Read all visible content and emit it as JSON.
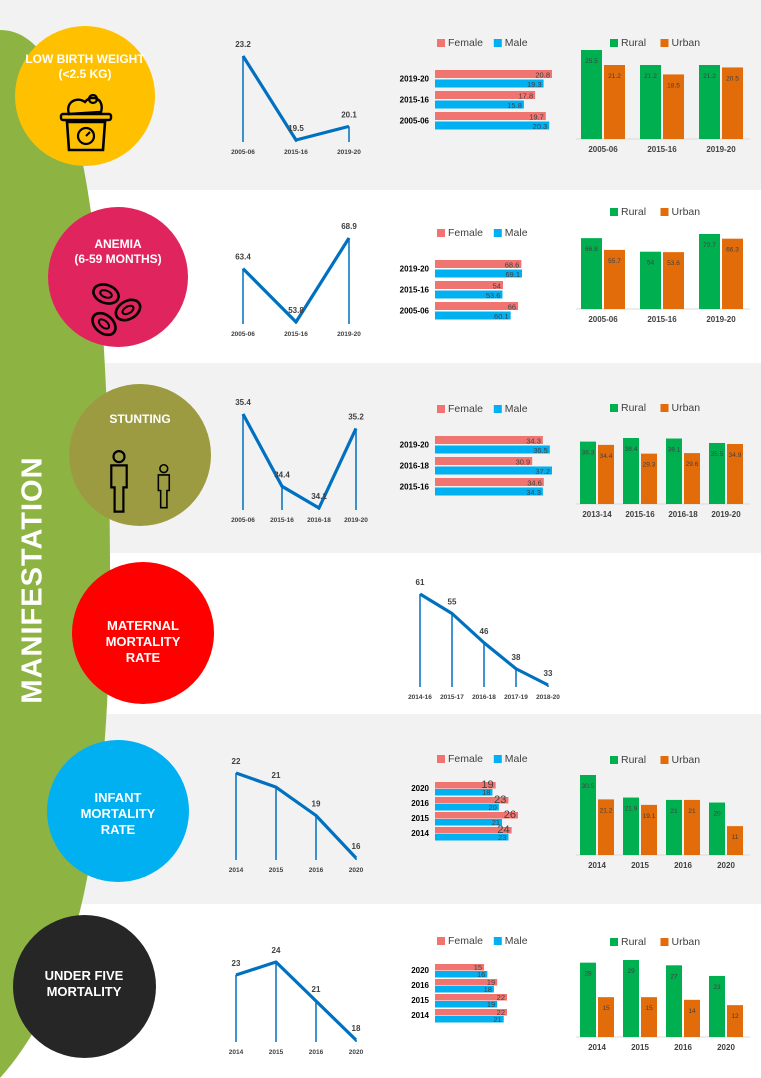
{
  "sidebar": {
    "title": "MANIFESTATION"
  },
  "rows": [
    {
      "id": "lbw",
      "label_lines": [
        "LOW BIRTH WEIGHT",
        "(<2.5 KG)"
      ],
      "circle_color": "#ffc000",
      "bg": "#f2f2f2"
    },
    {
      "id": "anemia",
      "label_lines": [
        "ANEMIA",
        "(6-59 MONTHS)"
      ],
      "circle_color": "#e0245e",
      "bg": "#ffffff"
    },
    {
      "id": "stunting",
      "label_lines": [
        "STUNTING"
      ],
      "circle_color": "#9d9b42",
      "bg": "#f2f2f2"
    },
    {
      "id": "mmr",
      "label_lines": [
        "MATERNAL",
        "MORTALITY",
        "RATE"
      ],
      "circle_color": "#ff0000",
      "bg": "#ffffff"
    },
    {
      "id": "imr",
      "label_lines": [
        "INFANT",
        "MORTALITY",
        "RATE"
      ],
      "circle_color": "#00b0f0",
      "bg": "#f2f2f2"
    },
    {
      "id": "u5",
      "label_lines": [
        "UNDER FIVE",
        "MORTALITY"
      ],
      "circle_color": "#262626",
      "bg": "#ffffff"
    }
  ],
  "colors": {
    "line": "#0070c0",
    "female": "#f07470",
    "male": "#00b0f0",
    "rural": "#00b050",
    "urban": "#e26b0a",
    "leaf": "#8db443"
  },
  "chart_data": [
    {
      "type": "line",
      "indicator": "lbw",
      "categories": [
        "2005-06",
        "2015-16",
        "2019-20"
      ],
      "values": [
        23.2,
        19.5,
        20.1
      ]
    },
    {
      "type": "bar",
      "orientation": "horizontal",
      "indicator": "lbw",
      "categories": [
        "2019-20",
        "2015-16",
        "2005-06"
      ],
      "series": [
        {
          "name": "Female",
          "values": [
            20.8,
            17.8,
            19.7
          ]
        },
        {
          "name": "Male",
          "values": [
            19.3,
            15.8,
            20.3
          ]
        }
      ]
    },
    {
      "type": "bar",
      "orientation": "vertical",
      "indicator": "lbw",
      "categories": [
        "2005-06",
        "2015-16",
        "2019-20"
      ],
      "series": [
        {
          "name": "Rural",
          "values": [
            25.5,
            21.2,
            21.2
          ]
        },
        {
          "name": "Urban",
          "values": [
            21.2,
            18.5,
            20.5
          ]
        }
      ]
    },
    {
      "type": "line",
      "indicator": "anemia",
      "categories": [
        "2005-06",
        "2015-16",
        "2019-20"
      ],
      "values": [
        63.4,
        53.8,
        68.9
      ]
    },
    {
      "type": "bar",
      "orientation": "horizontal",
      "indicator": "anemia",
      "categories": [
        "2019-20",
        "2015-16",
        "2005-06"
      ],
      "series": [
        {
          "name": "Female",
          "values": [
            68.6,
            54,
            66
          ]
        },
        {
          "name": "Male",
          "values": [
            69.1,
            53.6,
            60.1
          ]
        }
      ]
    },
    {
      "type": "bar",
      "orientation": "vertical",
      "indicator": "anemia",
      "categories": [
        "2005-06",
        "2015-16",
        "2019-20"
      ],
      "series": [
        {
          "name": "Rural",
          "values": [
            66.8,
            54,
            70.7
          ]
        },
        {
          "name": "Urban",
          "values": [
            55.7,
            53.6,
            66.3
          ]
        }
      ]
    },
    {
      "type": "line",
      "indicator": "stunting",
      "categories": [
        "2005-06",
        "2015-16",
        "2016-18",
        "2019-20"
      ],
      "values": [
        35.4,
        34.4,
        34.1,
        35.2
      ]
    },
    {
      "type": "bar",
      "orientation": "horizontal",
      "indicator": "stunting",
      "categories": [
        "2019-20",
        "2016-18",
        "2015-16"
      ],
      "series": [
        {
          "name": "Female",
          "values": [
            34.3,
            30.9,
            34.6
          ]
        },
        {
          "name": "Male",
          "values": [
            36.5,
            37.2,
            34.3
          ]
        }
      ]
    },
    {
      "type": "bar",
      "orientation": "vertical",
      "indicator": "stunting",
      "categories": [
        "2013-14",
        "2015-16",
        "2016-18",
        "2019-20"
      ],
      "series": [
        {
          "name": "Rural",
          "values": [
            36.3,
            38.4,
            38.1,
            35.5
          ]
        },
        {
          "name": "Urban",
          "values": [
            34.4,
            29.3,
            29.6,
            34.9
          ]
        }
      ]
    },
    {
      "type": "line",
      "indicator": "mmr",
      "categories": [
        "2014-16",
        "2015-17",
        "2016-18",
        "2017-19",
        "2018-20"
      ],
      "values": [
        61,
        55,
        46,
        38,
        33
      ]
    },
    {
      "type": "line",
      "indicator": "imr",
      "categories": [
        "2014",
        "2015",
        "2016",
        "2020"
      ],
      "values": [
        22,
        21,
        19,
        16
      ]
    },
    {
      "type": "bar",
      "orientation": "horizontal",
      "indicator": "imr",
      "categories": [
        "2020",
        "2016",
        "2015",
        "2014"
      ],
      "series": [
        {
          "name": "Female",
          "values": [
            19,
            23,
            26,
            24
          ]
        },
        {
          "name": "Male",
          "values": [
            18,
            20,
            21,
            23
          ]
        }
      ]
    },
    {
      "type": "bar",
      "orientation": "vertical",
      "indicator": "imr",
      "categories": [
        "2014",
        "2015",
        "2016",
        "2020"
      ],
      "series": [
        {
          "name": "Rural",
          "values": [
            30.5,
            21.9,
            21,
            20
          ]
        },
        {
          "name": "Urban",
          "values": [
            21.2,
            19.1,
            21,
            11
          ]
        }
      ]
    },
    {
      "type": "line",
      "indicator": "u5",
      "categories": [
        "2014",
        "2015",
        "2016",
        "2020"
      ],
      "values": [
        23,
        24,
        21,
        18
      ]
    },
    {
      "type": "bar",
      "orientation": "horizontal",
      "indicator": "u5",
      "categories": [
        "2020",
        "2016",
        "2015",
        "2014"
      ],
      "series": [
        {
          "name": "Female",
          "values": [
            15,
            19,
            22,
            22
          ]
        },
        {
          "name": "Male",
          "values": [
            16,
            18,
            19,
            21
          ]
        }
      ]
    },
    {
      "type": "bar",
      "orientation": "vertical",
      "indicator": "u5",
      "categories": [
        "2014",
        "2015",
        "2016",
        "2020"
      ],
      "series": [
        {
          "name": "Rural",
          "values": [
            28,
            29,
            27,
            23
          ]
        },
        {
          "name": "Urban",
          "values": [
            15,
            15,
            14,
            12
          ]
        }
      ]
    }
  ]
}
